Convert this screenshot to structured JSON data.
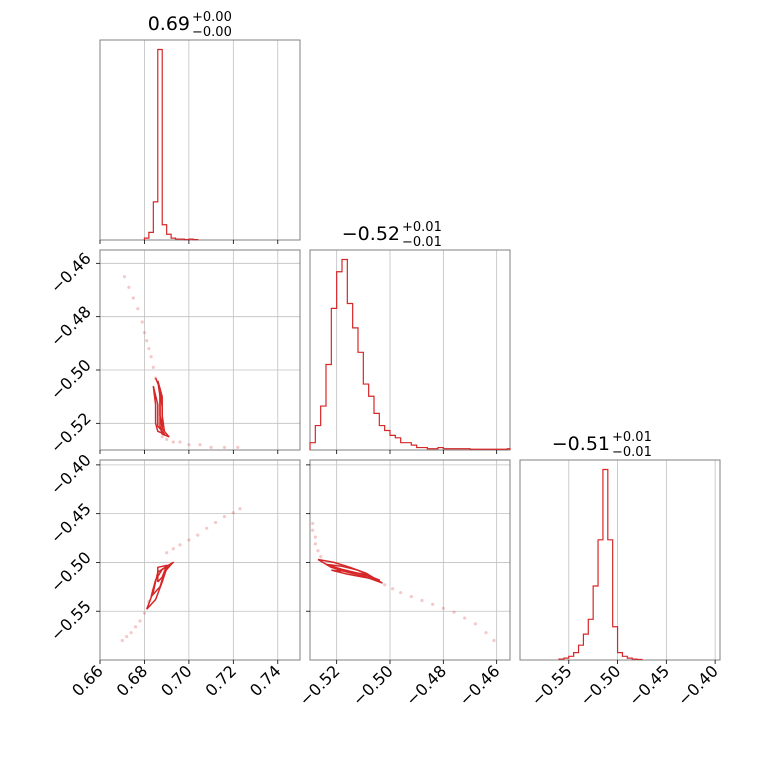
{
  "chart_data": {
    "type": "corner",
    "color": "#d62728",
    "grid": true,
    "parameters": [
      {
        "title_value": "0.69",
        "title_plus": "+0.00",
        "title_minus": "−0.00",
        "range": [
          0.66,
          0.75
        ],
        "ticks": [
          0.66,
          0.68,
          0.7,
          0.72,
          0.74
        ],
        "tick_labels": [
          "0.66",
          "0.68",
          "0.70",
          "0.72",
          "0.74"
        ]
      },
      {
        "title_value": "−0.52",
        "title_plus": "+0.01",
        "title_minus": "−0.01",
        "range": [
          -0.53,
          -0.455
        ],
        "ticks": [
          -0.52,
          -0.5,
          -0.48,
          -0.46
        ],
        "tick_labels": [
          "−0.52",
          "−0.50",
          "−0.48",
          "−0.46"
        ]
      },
      {
        "title_value": "−0.51",
        "title_plus": "+0.01",
        "title_minus": "−0.01",
        "range": [
          -0.6,
          -0.395
        ],
        "ticks": [
          -0.55,
          -0.5,
          -0.45,
          -0.4
        ],
        "tick_labels": [
          "−0.55",
          "−0.50",
          "−0.45",
          "−0.40"
        ]
      }
    ],
    "histograms": [
      {
        "param": 0,
        "bin_edges": [
          0.68,
          0.682,
          0.684,
          0.686,
          0.688,
          0.69,
          0.692,
          0.694,
          0.696,
          0.698,
          0.7,
          0.702,
          0.704
        ],
        "counts": [
          1,
          4,
          20,
          100,
          8,
          3,
          1,
          0.5,
          0.5,
          0.2,
          0.5,
          0.2
        ]
      },
      {
        "param": 1,
        "bin_edges": [
          -0.53,
          -0.528,
          -0.526,
          -0.524,
          -0.522,
          -0.52,
          -0.518,
          -0.516,
          -0.514,
          -0.512,
          -0.51,
          -0.508,
          -0.506,
          -0.504,
          -0.502,
          -0.5,
          -0.498,
          -0.496,
          -0.494,
          -0.492,
          -0.49,
          -0.488,
          -0.486,
          -0.484,
          -0.482,
          -0.48,
          -0.478,
          -0.476,
          -0.474,
          -0.472,
          -0.47,
          -0.468,
          -0.466,
          -0.464,
          -0.462,
          -0.46,
          -0.458,
          -0.456,
          -0.455
        ],
        "counts": [
          3,
          10,
          18,
          35,
          58,
          73,
          78,
          60,
          50,
          40,
          27,
          22,
          15,
          10,
          8,
          6,
          5,
          3,
          3,
          2,
          1,
          1,
          0.5,
          0.5,
          1,
          0.5,
          0.5,
          0.5,
          0.5,
          0.5,
          0.3,
          0.3,
          0.3,
          0.3,
          0.3,
          0.3,
          0.3,
          0.5
        ]
      },
      {
        "param": 2,
        "bin_edges": [
          -0.56,
          -0.555,
          -0.55,
          -0.545,
          -0.54,
          -0.535,
          -0.53,
          -0.525,
          -0.52,
          -0.515,
          -0.51,
          -0.505,
          -0.5,
          -0.495,
          -0.49,
          -0.485,
          -0.48,
          -0.475
        ],
        "counts": [
          0.5,
          1,
          2,
          4,
          8,
          14,
          22,
          40,
          65,
          103,
          65,
          18,
          4,
          2,
          1,
          0.5,
          0.3
        ]
      }
    ],
    "scatter": [
      {
        "x_param": 0,
        "y_param": 1,
        "points": [
          [
            0.671,
            -0.465
          ],
          [
            0.673,
            -0.469
          ],
          [
            0.675,
            -0.473
          ],
          [
            0.677,
            -0.477
          ],
          [
            0.679,
            -0.482
          ],
          [
            0.68,
            -0.486
          ],
          [
            0.681,
            -0.489
          ],
          [
            0.682,
            -0.492
          ],
          [
            0.683,
            -0.495
          ],
          [
            0.684,
            -0.499
          ],
          [
            0.685,
            -0.503
          ],
          [
            0.688,
            -0.525
          ],
          [
            0.69,
            -0.526
          ],
          [
            0.693,
            -0.527
          ],
          [
            0.696,
            -0.527
          ],
          [
            0.7,
            -0.528
          ],
          [
            0.705,
            -0.528
          ],
          [
            0.71,
            -0.529
          ],
          [
            0.716,
            -0.529
          ],
          [
            0.722,
            -0.529
          ]
        ],
        "contours": [
          [
            [
              0.685,
              -0.503
            ],
            [
              0.687,
              -0.507
            ],
            [
              0.687,
              -0.514
            ],
            [
              0.687,
              -0.521
            ],
            [
              0.688,
              -0.524
            ],
            [
              0.691,
              -0.525
            ],
            [
              0.688,
              -0.522
            ],
            [
              0.688,
              -0.514
            ],
            [
              0.687,
              -0.507
            ],
            [
              0.685,
              -0.503
            ]
          ],
          [
            [
              0.686,
              -0.504
            ],
            [
              0.687,
              -0.51
            ],
            [
              0.687,
              -0.517
            ],
            [
              0.688,
              -0.522
            ],
            [
              0.689,
              -0.523
            ],
            [
              0.688,
              -0.517
            ],
            [
              0.688,
              -0.51
            ],
            [
              0.686,
              -0.504
            ]
          ],
          [
            [
              0.684,
              -0.506
            ],
            [
              0.685,
              -0.513
            ],
            [
              0.685,
              -0.52
            ],
            [
              0.686,
              -0.523
            ],
            [
              0.689,
              -0.524
            ],
            [
              0.686,
              -0.521
            ],
            [
              0.686,
              -0.513
            ],
            [
              0.684,
              -0.506
            ]
          ]
        ]
      },
      {
        "x_param": 0,
        "y_param": 2,
        "points": [
          [
            0.67,
            -0.58
          ],
          [
            0.672,
            -0.576
          ],
          [
            0.674,
            -0.572
          ],
          [
            0.676,
            -0.566
          ],
          [
            0.678,
            -0.56
          ],
          [
            0.68,
            -0.552
          ],
          [
            0.682,
            -0.54
          ],
          [
            0.684,
            -0.528
          ],
          [
            0.69,
            -0.49
          ],
          [
            0.693,
            -0.486
          ],
          [
            0.696,
            -0.482
          ],
          [
            0.7,
            -0.477
          ],
          [
            0.704,
            -0.472
          ],
          [
            0.708,
            -0.465
          ],
          [
            0.712,
            -0.459
          ],
          [
            0.716,
            -0.453
          ],
          [
            0.72,
            -0.449
          ],
          [
            0.723,
            -0.445
          ]
        ],
        "contours": [
          [
            [
              0.681,
              -0.548
            ],
            [
              0.684,
              -0.53
            ],
            [
              0.686,
              -0.51
            ],
            [
              0.69,
              -0.504
            ],
            [
              0.693,
              -0.5
            ],
            [
              0.69,
              -0.506
            ],
            [
              0.688,
              -0.52
            ],
            [
              0.685,
              -0.538
            ],
            [
              0.681,
              -0.548
            ]
          ],
          [
            [
              0.683,
              -0.535
            ],
            [
              0.685,
              -0.518
            ],
            [
              0.688,
              -0.507
            ],
            [
              0.692,
              -0.502
            ],
            [
              0.689,
              -0.51
            ],
            [
              0.687,
              -0.525
            ],
            [
              0.683,
              -0.535
            ]
          ],
          [
            [
              0.686,
              -0.52
            ],
            [
              0.686,
              -0.505
            ],
            [
              0.69,
              -0.503
            ],
            [
              0.688,
              -0.515
            ],
            [
              0.686,
              -0.52
            ]
          ]
        ]
      },
      {
        "x_param": 1,
        "y_param": 2,
        "points": [
          [
            -0.529,
            -0.46
          ],
          [
            -0.529,
            -0.467
          ],
          [
            -0.528,
            -0.474
          ],
          [
            -0.528,
            -0.481
          ],
          [
            -0.527,
            -0.488
          ],
          [
            -0.526,
            -0.494
          ],
          [
            -0.502,
            -0.523
          ],
          [
            -0.499,
            -0.527
          ],
          [
            -0.496,
            -0.531
          ],
          [
            -0.492,
            -0.535
          ],
          [
            -0.488,
            -0.539
          ],
          [
            -0.484,
            -0.543
          ],
          [
            -0.48,
            -0.547
          ],
          [
            -0.476,
            -0.551
          ],
          [
            -0.472,
            -0.557
          ],
          [
            -0.468,
            -0.563
          ],
          [
            -0.464,
            -0.572
          ],
          [
            -0.461,
            -0.58
          ]
        ],
        "contours": [
          [
            [
              -0.527,
              -0.497
            ],
            [
              -0.522,
              -0.505
            ],
            [
              -0.516,
              -0.51
            ],
            [
              -0.51,
              -0.514
            ],
            [
              -0.503,
              -0.521
            ],
            [
              -0.509,
              -0.511
            ],
            [
              -0.515,
              -0.505
            ],
            [
              -0.521,
              -0.5
            ],
            [
              -0.527,
              -0.497
            ]
          ],
          [
            [
              -0.524,
              -0.502
            ],
            [
              -0.518,
              -0.507
            ],
            [
              -0.512,
              -0.511
            ],
            [
              -0.506,
              -0.516
            ],
            [
              -0.512,
              -0.508
            ],
            [
              -0.518,
              -0.504
            ],
            [
              -0.524,
              -0.502
            ]
          ],
          [
            [
              -0.522,
              -0.508
            ],
            [
              -0.516,
              -0.512
            ],
            [
              -0.51,
              -0.515
            ],
            [
              -0.504,
              -0.518
            ],
            [
              -0.51,
              -0.512
            ],
            [
              -0.516,
              -0.509
            ],
            [
              -0.522,
              -0.508
            ]
          ]
        ]
      }
    ]
  }
}
